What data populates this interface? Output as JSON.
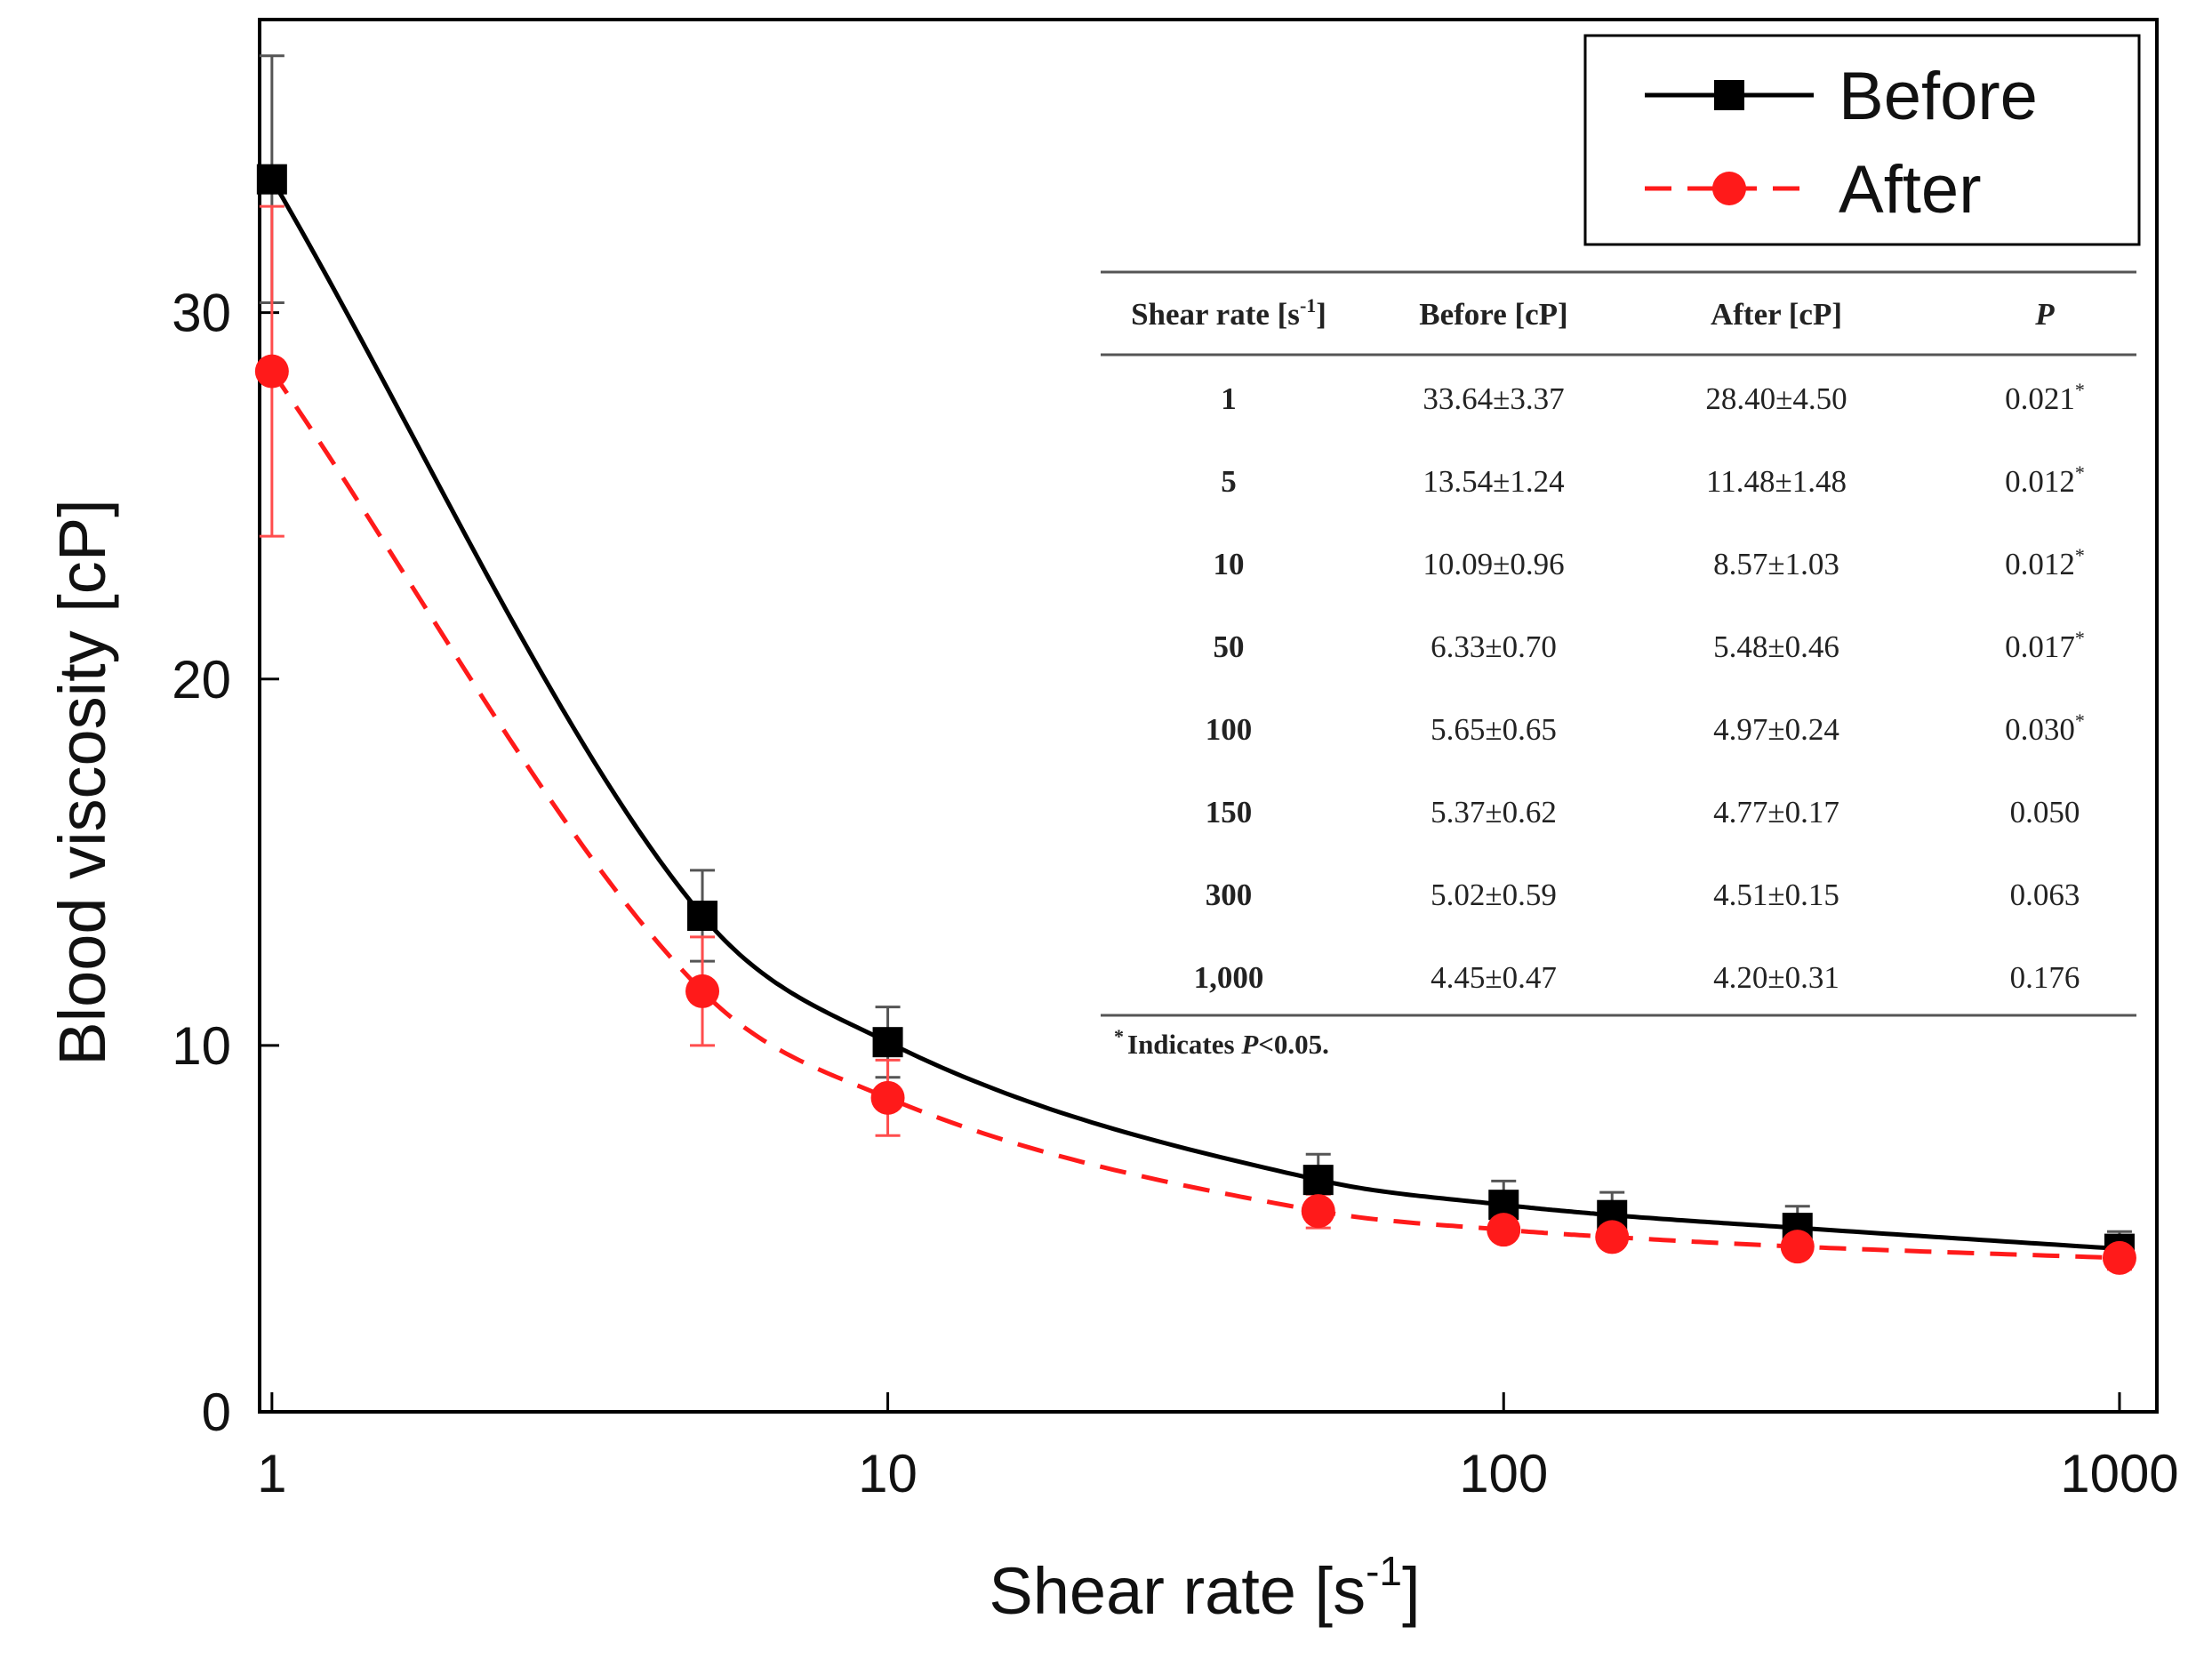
{
  "chart_data": {
    "type": "line",
    "xscale": "log",
    "title": "",
    "xlabel": "Shear rate [s",
    "xlabel_sup": "-1",
    "xlabel_close": "]",
    "ylabel": "Blood viscosity [cP]",
    "xlim": [
      0.955,
      1150
    ],
    "ylim": [
      0,
      38
    ],
    "x_ticks": [
      1,
      10,
      100,
      1000
    ],
    "x_tick_labels": [
      "1",
      "10",
      "100",
      "1000"
    ],
    "y_ticks": [
      0,
      10,
      20,
      30
    ],
    "y_tick_labels": [
      "0",
      "10",
      "20",
      "30"
    ],
    "legend_position": "top-right",
    "series": [
      {
        "name": "Before",
        "color": "#000000",
        "line_style": "solid",
        "marker": "square",
        "x": [
          1,
          5,
          10,
          50,
          100,
          150,
          300,
          1000
        ],
        "values": [
          33.64,
          13.54,
          10.09,
          6.33,
          5.65,
          5.37,
          5.02,
          4.45
        ],
        "errors": [
          3.37,
          1.24,
          0.96,
          0.7,
          0.65,
          0.62,
          0.59,
          0.47
        ]
      },
      {
        "name": "After",
        "color": "#ff1a1a",
        "line_style": "dashed",
        "marker": "circle",
        "x": [
          1,
          5,
          10,
          50,
          100,
          150,
          300,
          1000
        ],
        "values": [
          28.4,
          11.48,
          8.57,
          5.48,
          4.97,
          4.77,
          4.51,
          4.2
        ],
        "errors": [
          4.5,
          1.48,
          1.03,
          0.46,
          0.24,
          0.17,
          0.15,
          0.31
        ]
      }
    ],
    "inset_table": {
      "headers": [
        "Shear rate [s",
        "Before [cP]",
        "After [cP]",
        "P"
      ],
      "header_sup": "-1",
      "header_close": "]",
      "rows": [
        [
          "1",
          "33.64±3.37",
          "28.40±4.50",
          "0.021",
          "*"
        ],
        [
          "5",
          "13.54±1.24",
          "11.48±1.48",
          "0.012",
          "*"
        ],
        [
          "10",
          "10.09±0.96",
          "8.57±1.03",
          "0.012",
          "*"
        ],
        [
          "50",
          "6.33±0.70",
          "5.48±0.46",
          "0.017",
          "*"
        ],
        [
          "100",
          "5.65±0.65",
          "4.97±0.24",
          "0.030",
          "*"
        ],
        [
          "150",
          "5.37±0.62",
          "4.77±0.17",
          "0.050",
          ""
        ],
        [
          "300",
          "5.02±0.59",
          "4.51±0.15",
          "0.063",
          ""
        ],
        [
          "1,000",
          "4.45±0.47",
          "4.20±0.31",
          "0.176",
          ""
        ]
      ],
      "footnote_mark": "*",
      "footnote_pre": "Indicates ",
      "footnote_p": "P",
      "footnote_post": "<0.05."
    }
  }
}
